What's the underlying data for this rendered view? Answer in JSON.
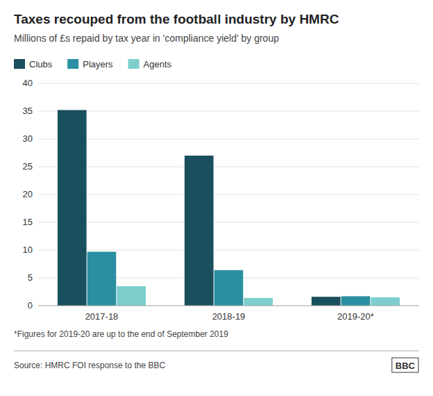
{
  "chart_data": {
    "type": "bar",
    "title": "Taxes recouped from the football industry by HMRC",
    "subtitle": "Millions of £s repaid by tax year in 'compliance yield' by group",
    "categories": [
      "2017-18",
      "2018-19",
      "2019-20*"
    ],
    "series": [
      {
        "name": "Clubs",
        "color": "#1a4f5e",
        "values": [
          35.2,
          27.0,
          1.6
        ]
      },
      {
        "name": "Players",
        "color": "#2a8fa0",
        "values": [
          9.7,
          6.4,
          1.7
        ]
      },
      {
        "name": "Agents",
        "color": "#7ecece",
        "values": [
          3.5,
          1.4,
          1.5
        ]
      }
    ],
    "ylim": [
      0,
      40
    ],
    "yticks": [
      0,
      5,
      10,
      15,
      20,
      25,
      30,
      35,
      40
    ],
    "grid": true,
    "legend": "top-left",
    "annotations": [
      "*Figures for 2019-20 are up to the end of September 2019",
      "Source: HMRC FOI response to the BBC",
      "BBC"
    ]
  }
}
